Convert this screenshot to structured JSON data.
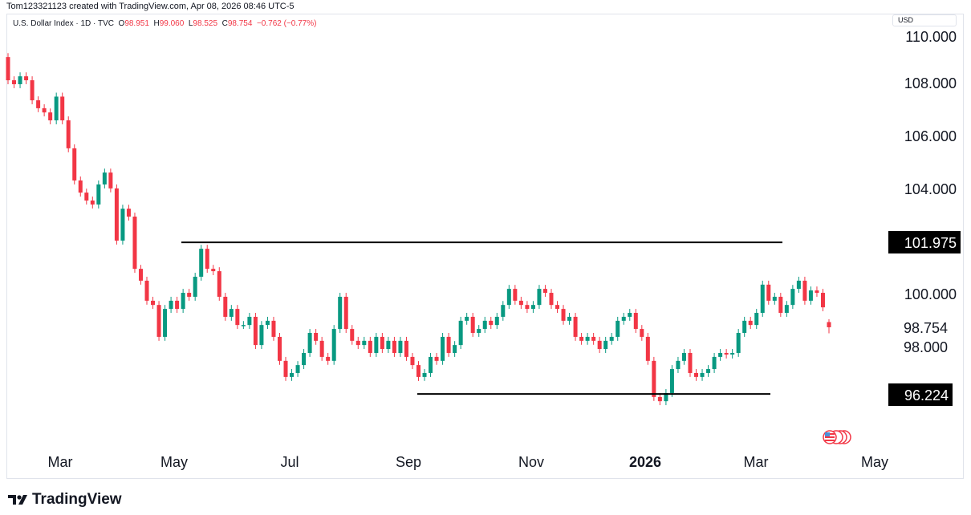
{
  "credit": "Tom123321123 created with TradingView.com, Apr 08, 2026 08:46 UTC-5",
  "legend": {
    "symbol": "U.S. Dollar Index · 1D · TVC",
    "o_label": "O",
    "o": "98.951",
    "h_label": "H",
    "h": "99.060",
    "l_label": "L",
    "l": "98.525",
    "c_label": "C",
    "c": "98.754",
    "change": "−0.762 (−0.77%)"
  },
  "currency": "USD",
  "logo_text": "TradingView",
  "colors": {
    "up": "#089981",
    "down": "#f23645",
    "line": "#000000",
    "label_bg": "#000000"
  },
  "chart_data": {
    "type": "candlestick",
    "title": "U.S. Dollar Index",
    "interval": "1D",
    "ylim": [
      95,
      110.5
    ],
    "y_ticks": [
      110,
      108,
      106,
      104,
      100,
      98
    ],
    "y_tick_labels": [
      "110.000",
      "108.000",
      "106.000",
      "104.000",
      "100.000",
      "98.000"
    ],
    "x_tick_labels": [
      "Mar",
      "May",
      "Jul",
      "Sep",
      "Nov",
      "2026",
      "Mar",
      "May"
    ],
    "first_open": 109.0,
    "closes": [
      108.12,
      107.97,
      108.27,
      108.12,
      107.36,
      107.06,
      106.9,
      106.6,
      107.5,
      106.6,
      105.54,
      104.32,
      103.86,
      103.56,
      103.41,
      104.17,
      104.62,
      104.02,
      102.04,
      103.25,
      102.95,
      100.97,
      100.52,
      99.76,
      99.6,
      98.39,
      99.45,
      99.76,
      99.45,
      100.06,
      99.91,
      100.67,
      101.73,
      100.97,
      100.88,
      99.91,
      99.15,
      99.45,
      98.84,
      98.84,
      99.15,
      98.08,
      98.84,
      99.0,
      98.39,
      97.48,
      96.87,
      97.02,
      97.32,
      97.78,
      98.54,
      98.24,
      97.63,
      97.48,
      98.69,
      99.91,
      98.69,
      98.24,
      98.08,
      98.24,
      97.78,
      98.39,
      97.93,
      98.24,
      97.78,
      98.24,
      97.63,
      97.32,
      96.87,
      97.02,
      97.63,
      97.48,
      98.39,
      97.78,
      98.08,
      99.0,
      99.15,
      98.54,
      98.69,
      99.0,
      98.84,
      99.15,
      99.6,
      100.21,
      99.76,
      99.6,
      99.45,
      99.6,
      100.21,
      100.06,
      99.6,
      99.45,
      99.0,
      99.15,
      98.39,
      98.24,
      98.39,
      98.24,
      97.93,
      98.24,
      98.39,
      99.0,
      99.15,
      99.3,
      98.69,
      98.39,
      97.48,
      96.11,
      95.95,
      96.26,
      97.17,
      97.48,
      97.78,
      97.02,
      96.87,
      97.02,
      97.17,
      97.63,
      97.78,
      97.72,
      97.78,
      98.54,
      99.0,
      98.84,
      99.3,
      100.37,
      99.76,
      99.91,
      99.3,
      99.6,
      100.21,
      100.52,
      99.76,
      100.15,
      100.06,
      99.51
    ],
    "last_candle": {
      "open": 98.951,
      "high": 99.06,
      "low": 98.525,
      "close": 98.754
    },
    "horizontal_lines": [
      {
        "price": 101.975,
        "label": "101.975"
      },
      {
        "price": 96.224,
        "label": "96.224"
      }
    ],
    "last_price_label": "98.754"
  }
}
